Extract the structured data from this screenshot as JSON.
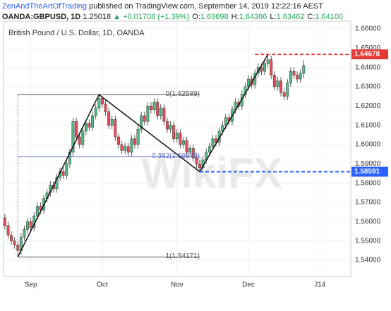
{
  "header": {
    "author": "ZenAndTheArtOfTrading",
    "published": "published on TradingView.com, September 14, 2019 12:22:16 AEST",
    "symbol": "OANDA:GBPUSD, 1D",
    "last": "1.25018",
    "change": "▲ +0.01708 (+1.39%)",
    "ohlc": [
      {
        "label": "O:",
        "value": "1.63698"
      },
      {
        "label": "H:",
        "value": "1.64386"
      },
      {
        "label": "L:",
        "value": "1.63462"
      },
      {
        "label": "C:",
        "value": "1.64100"
      }
    ]
  },
  "chart_data": {
    "type": "candlestick",
    "subtitle": "British Pound / U.S. Dollar, 1D, OANDA",
    "watermark": "WikiFX",
    "up_color": "#53b987",
    "down_color": "#eb4d5c",
    "xlim": [
      -0.4,
      106.5
    ],
    "xticks": [
      {
        "value": 8,
        "label": "Sep"
      },
      {
        "value": 30,
        "label": "Oct"
      },
      {
        "value": 53,
        "label": "Nov"
      },
      {
        "value": 75,
        "label": "Dec"
      },
      {
        "value": 97,
        "label": "J14"
      }
    ],
    "ylim": [
      1.5316,
      1.664
    ],
    "yticks": [
      {
        "value": 1.54,
        "label": "1.54000"
      },
      {
        "value": 1.55,
        "label": "1.55000"
      },
      {
        "value": 1.56,
        "label": "1.56000"
      },
      {
        "value": 1.57,
        "label": "1.57000"
      },
      {
        "value": 1.58,
        "label": "1.58000"
      },
      {
        "value": 1.59,
        "label": "1.59000"
      },
      {
        "value": 1.6,
        "label": "1.60000"
      },
      {
        "value": 1.61,
        "label": "1.61000"
      },
      {
        "value": 1.62,
        "label": "1.62000"
      },
      {
        "value": 1.63,
        "label": "1.63000"
      },
      {
        "value": 1.64,
        "label": "1.64000"
      },
      {
        "value": 1.65,
        "label": "1.65000"
      },
      {
        "value": 1.66,
        "label": "1.66000"
      }
    ],
    "grid": true,
    "open": [
      1.562,
      1.558,
      1.553,
      1.55,
      1.548,
      1.545,
      1.552,
      1.556,
      1.56,
      1.557,
      1.563,
      1.568,
      1.566,
      1.572,
      1.575,
      1.579,
      1.577,
      1.583,
      1.586,
      1.584,
      1.59,
      1.596,
      1.612,
      1.604,
      1.6,
      1.607,
      1.611,
      1.609,
      1.615,
      1.619,
      1.624,
      1.621,
      1.617,
      1.61,
      1.613,
      1.604,
      1.6,
      1.597,
      1.599,
      1.596,
      1.603,
      1.6,
      1.608,
      1.615,
      1.612,
      1.62,
      1.618,
      1.622,
      1.615,
      1.619,
      1.612,
      1.608,
      1.61,
      1.603,
      1.606,
      1.6,
      1.602,
      1.596,
      1.598,
      1.593,
      1.59,
      1.588,
      1.592,
      1.596,
      1.599,
      1.603,
      1.601,
      1.607,
      1.61,
      1.614,
      1.612,
      1.618,
      1.622,
      1.62,
      1.626,
      1.63,
      1.634,
      1.631,
      1.637,
      1.64,
      1.638,
      1.642,
      1.644,
      1.636,
      1.63,
      1.633,
      1.627,
      1.625,
      1.632,
      1.638,
      1.636,
      1.634,
      1.637
    ],
    "high": [
      1.564,
      1.56,
      1.555,
      1.552,
      1.55,
      1.554,
      1.558,
      1.562,
      1.562,
      1.565,
      1.57,
      1.57,
      1.574,
      1.577,
      1.581,
      1.581,
      1.585,
      1.588,
      1.588,
      1.592,
      1.598,
      1.614,
      1.614,
      1.606,
      1.609,
      1.613,
      1.613,
      1.617,
      1.621,
      1.6259,
      1.625,
      1.623,
      1.619,
      1.615,
      1.615,
      1.606,
      1.602,
      1.601,
      1.601,
      1.605,
      1.605,
      1.61,
      1.617,
      1.617,
      1.622,
      1.622,
      1.624,
      1.624,
      1.621,
      1.621,
      1.614,
      1.612,
      1.612,
      1.608,
      1.608,
      1.604,
      1.604,
      1.6,
      1.6,
      1.595,
      1.592,
      1.594,
      1.598,
      1.601,
      1.605,
      1.605,
      1.609,
      1.612,
      1.616,
      1.616,
      1.62,
      1.624,
      1.624,
      1.628,
      1.632,
      1.636,
      1.636,
      1.639,
      1.642,
      1.642,
      1.644,
      1.6468,
      1.646,
      1.638,
      1.635,
      1.635,
      1.629,
      1.634,
      1.64,
      1.64,
      1.638,
      1.639,
      1.6439
    ],
    "low": [
      1.556,
      1.551,
      1.548,
      1.546,
      1.5417,
      1.543,
      1.55,
      1.554,
      1.555,
      1.555,
      1.561,
      1.564,
      1.564,
      1.57,
      1.573,
      1.575,
      1.575,
      1.581,
      1.582,
      1.582,
      1.588,
      1.594,
      1.602,
      1.598,
      1.598,
      1.605,
      1.607,
      1.607,
      1.613,
      1.617,
      1.619,
      1.615,
      1.608,
      1.608,
      1.602,
      1.598,
      1.595,
      1.595,
      1.594,
      1.594,
      1.598,
      1.598,
      1.606,
      1.61,
      1.61,
      1.616,
      1.616,
      1.613,
      1.613,
      1.61,
      1.606,
      1.606,
      1.601,
      1.601,
      1.598,
      1.598,
      1.594,
      1.594,
      1.591,
      1.588,
      1.5859,
      1.586,
      1.59,
      1.594,
      1.597,
      1.599,
      1.599,
      1.605,
      1.608,
      1.61,
      1.61,
      1.616,
      1.618,
      1.618,
      1.624,
      1.628,
      1.629,
      1.629,
      1.635,
      1.636,
      1.636,
      1.64,
      1.634,
      1.628,
      1.628,
      1.625,
      1.623,
      1.623,
      1.63,
      1.634,
      1.632,
      1.632,
      1.6346
    ],
    "close": [
      1.558,
      1.553,
      1.55,
      1.548,
      1.545,
      1.552,
      1.556,
      1.56,
      1.557,
      1.563,
      1.568,
      1.566,
      1.572,
      1.575,
      1.579,
      1.577,
      1.583,
      1.586,
      1.584,
      1.59,
      1.596,
      1.612,
      1.604,
      1.6,
      1.607,
      1.611,
      1.609,
      1.615,
      1.619,
      1.624,
      1.621,
      1.617,
      1.61,
      1.613,
      1.604,
      1.6,
      1.597,
      1.599,
      1.596,
      1.603,
      1.6,
      1.608,
      1.615,
      1.612,
      1.62,
      1.618,
      1.622,
      1.615,
      1.619,
      1.612,
      1.608,
      1.61,
      1.603,
      1.606,
      1.6,
      1.602,
      1.596,
      1.598,
      1.593,
      1.59,
      1.588,
      1.592,
      1.596,
      1.599,
      1.603,
      1.601,
      1.607,
      1.61,
      1.614,
      1.612,
      1.618,
      1.622,
      1.62,
      1.626,
      1.63,
      1.634,
      1.631,
      1.637,
      1.64,
      1.638,
      1.642,
      1.644,
      1.636,
      1.63,
      1.633,
      1.627,
      1.625,
      1.632,
      1.638,
      1.636,
      1.634,
      1.637,
      1.641
    ],
    "fib": {
      "x": [
        4,
        60
      ],
      "levels": [
        {
          "value": 1.62589,
          "label": "0(1.62589)",
          "color": "#555555"
        },
        {
          "value": 1.59373,
          "label": "0.382(1.59373)",
          "color": "#5b6bbf"
        },
        {
          "value": 1.54171,
          "label": "1(1.54171)",
          "color": "#555555"
        }
      ]
    },
    "zigzag": {
      "x": [
        4,
        29,
        60,
        81
      ],
      "y": [
        1.54171,
        1.62589,
        1.58591,
        1.64678
      ],
      "color": "#111111"
    },
    "price_lines": [
      {
        "value": 1.64678,
        "from_x": 77,
        "color": "#e53935"
      },
      {
        "value": 1.58591,
        "from_x": 60,
        "color": "#2962ff"
      }
    ]
  }
}
